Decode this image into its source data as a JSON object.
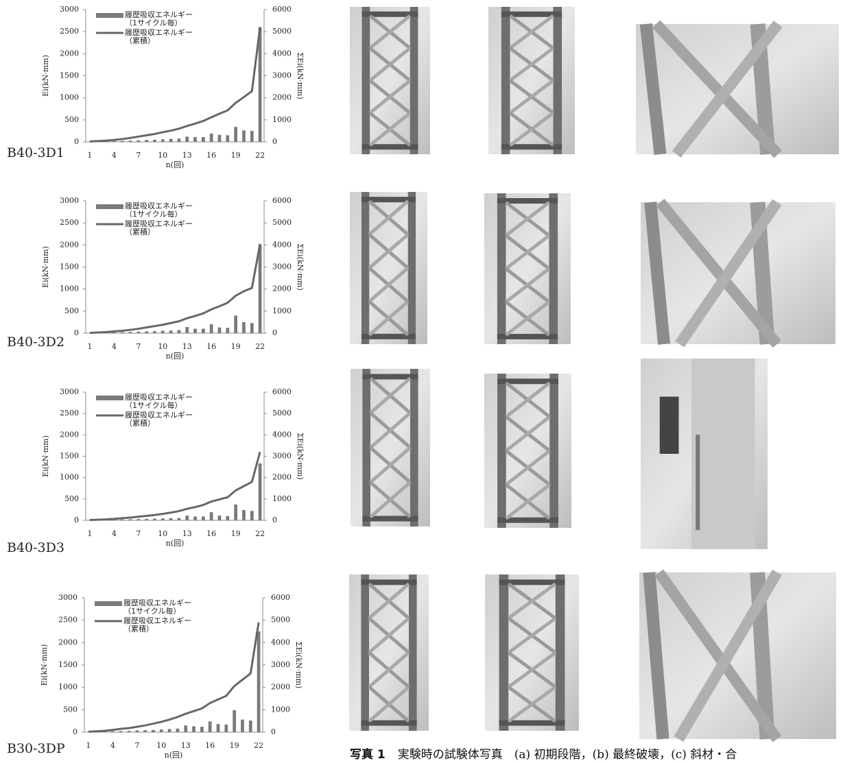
{
  "chart_data": [
    {
      "type": "combo",
      "label": "B40-3D1",
      "xlabel": "n(回)",
      "ylabel": "Ei(kN·mm)",
      "y2label": "ΣEi(kN·mm)",
      "categories": [
        1,
        null,
        null,
        4,
        null,
        null,
        7,
        null,
        null,
        10,
        null,
        null,
        13,
        null,
        null,
        16,
        null,
        null,
        19,
        null,
        null,
        22
      ],
      "series": [
        {
          "name": "履歴吸収エネルギー（1サイクル毎）",
          "type": "bar",
          "color": "#7a7a7a",
          "values": [
            5,
            10,
            15,
            20,
            25,
            30,
            35,
            45,
            50,
            60,
            70,
            75,
            120,
            110,
            110,
            190,
            160,
            150,
            340,
            260,
            250,
            2600
          ]
        },
        {
          "name": "履歴吸収エネルギー（累積）",
          "type": "line",
          "axis": "y2",
          "color": "#666666",
          "values": [
            20,
            40,
            60,
            90,
            130,
            180,
            240,
            300,
            360,
            440,
            510,
            600,
            720,
            830,
            950,
            1120,
            1280,
            1430,
            1770,
            2030,
            2300,
            5200
          ]
        }
      ],
      "ylim": [
        0,
        3000
      ],
      "yticks": [
        0,
        500,
        1000,
        1500,
        2000,
        2500,
        3000
      ],
      "y2lim": [
        0,
        6000
      ],
      "y2ticks": [
        0,
        1000,
        2000,
        3000,
        4000,
        5000,
        6000
      ]
    },
    {
      "type": "combo",
      "label": "B40-3D2",
      "xlabel": "n(回)",
      "ylabel": "Ei(kN·mm)",
      "y2label": "ΣEi(kN·mm)",
      "categories": [
        1,
        null,
        null,
        4,
        null,
        null,
        7,
        null,
        null,
        10,
        null,
        null,
        13,
        null,
        null,
        16,
        null,
        null,
        19,
        null,
        null,
        22
      ],
      "series": [
        {
          "name": "履歴吸収エネルギー（1サイクル毎）",
          "type": "bar",
          "color": "#7a7a7a",
          "values": [
            5,
            8,
            12,
            18,
            22,
            28,
            35,
            40,
            45,
            55,
            60,
            70,
            140,
            100,
            100,
            200,
            130,
            120,
            400,
            250,
            230,
            2000
          ]
        },
        {
          "name": "履歴吸収エネルギー（累積）",
          "type": "line",
          "axis": "y2",
          "color": "#666666",
          "values": [
            15,
            30,
            50,
            80,
            110,
            150,
            200,
            260,
            320,
            380,
            460,
            540,
            680,
            780,
            900,
            1080,
            1220,
            1380,
            1700,
            1900,
            2050,
            4050
          ]
        }
      ],
      "ylim": [
        0,
        3000
      ],
      "yticks": [
        0,
        500,
        1000,
        1500,
        2000,
        2500,
        3000
      ],
      "y2lim": [
        0,
        6000
      ],
      "y2ticks": [
        0,
        1000,
        2000,
        3000,
        4000,
        5000,
        6000
      ]
    },
    {
      "type": "combo",
      "label": "B40-3D3",
      "xlabel": "n(回)",
      "ylabel": "Ei(kN·mm)",
      "y2label": "ΣEi(kN·mm)",
      "categories": [
        1,
        null,
        null,
        4,
        null,
        null,
        7,
        null,
        null,
        10,
        null,
        null,
        13,
        null,
        null,
        16,
        null,
        null,
        19,
        null,
        null,
        22
      ],
      "series": [
        {
          "name": "履歴吸収エネルギー（1サイクル毎）",
          "type": "bar",
          "color": "#7a7a7a",
          "values": [
            5,
            8,
            12,
            16,
            20,
            25,
            30,
            35,
            40,
            45,
            50,
            55,
            110,
            90,
            90,
            190,
            110,
            100,
            370,
            240,
            220,
            1330
          ]
        },
        {
          "name": "履歴吸収エネルギー（累積）",
          "type": "line",
          "axis": "y2",
          "color": "#666666",
          "values": [
            15,
            30,
            45,
            70,
            100,
            130,
            170,
            210,
            250,
            300,
            360,
            430,
            540,
            620,
            720,
            880,
            980,
            1080,
            1400,
            1600,
            1800,
            3200
          ]
        }
      ],
      "ylim": [
        0,
        3000
      ],
      "yticks": [
        0,
        500,
        1000,
        1500,
        2000,
        2500,
        3000
      ],
      "y2lim": [
        0,
        6000
      ],
      "y2ticks": [
        0,
        1000,
        2000,
        3000,
        4000,
        5000,
        6000
      ]
    },
    {
      "type": "combo",
      "label": "B30-3DP",
      "xlabel": "n(回)",
      "ylabel": "Ei(kN·mm)",
      "y2label": "ΣEi(kN·mm)",
      "categories": [
        1,
        null,
        null,
        4,
        null,
        null,
        7,
        null,
        null,
        10,
        null,
        null,
        13,
        null,
        null,
        16,
        null,
        null,
        19,
        null,
        null,
        22
      ],
      "series": [
        {
          "name": "履歴吸収エネルギー（1サイクル毎）",
          "type": "bar",
          "color": "#7a7a7a",
          "values": [
            5,
            10,
            15,
            20,
            25,
            30,
            40,
            45,
            50,
            60,
            70,
            80,
            150,
            130,
            120,
            240,
            180,
            170,
            490,
            280,
            260,
            2250
          ]
        },
        {
          "name": "履歴吸収エネルギー（累積）",
          "type": "line",
          "axis": "y2",
          "color": "#666666",
          "values": [
            20,
            40,
            60,
            100,
            150,
            180,
            240,
            300,
            380,
            460,
            560,
            680,
            820,
            940,
            1060,
            1300,
            1460,
            1620,
            2060,
            2340,
            2620,
            4900
          ]
        }
      ],
      "ylim": [
        0,
        3000
      ],
      "yticks": [
        0,
        500,
        1000,
        1500,
        2000,
        2500,
        3000
      ],
      "y2lim": [
        0,
        6000
      ],
      "y2ticks": [
        0,
        1000,
        2000,
        3000,
        4000,
        5000,
        6000
      ]
    }
  ],
  "caption": {
    "label": "写真 1",
    "text": "実験時の試験体写真　(a) 初期段階，(b) 最終破壊，(c) 斜材・合"
  }
}
